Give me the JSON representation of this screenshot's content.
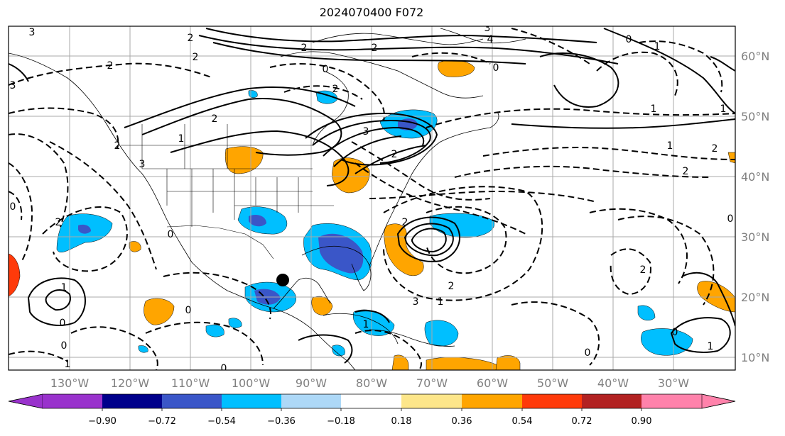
{
  "title": "2024070400 F072",
  "longitude_labels": [
    "130°W",
    "120°W",
    "110°W",
    "100°W",
    "90°W",
    "80°W",
    "70°W",
    "60°W",
    "50°W",
    "40°W",
    "30°W"
  ],
  "latitude_labels": [
    "60°N",
    "50°N",
    "40°N",
    "30°N",
    "20°N",
    "10°N"
  ],
  "colorbar": {
    "ticks": [
      "−0.90",
      "−0.72",
      "−0.54",
      "−0.36",
      "−0.18",
      "0.18",
      "0.36",
      "0.54",
      "0.72",
      "0.90"
    ],
    "colors": [
      "#9932cc",
      "#00008b",
      "#3a56c8",
      "#00bfff",
      "#add8f7",
      "#ffffff",
      "#fde68a",
      "#ffa500",
      "#ff3a0a",
      "#b22222",
      "#ff82ab"
    ]
  },
  "contour_labels": [
    "3",
    "2",
    "2",
    "2",
    "3",
    "4",
    "0",
    "0",
    "1",
    "1",
    "1",
    "2",
    "2",
    "0",
    "2",
    "1",
    "2",
    "3",
    "2",
    "2",
    "1",
    "3",
    "3",
    "2",
    "2",
    "0",
    "1",
    "0",
    "0",
    "0",
    "2",
    "2",
    "1",
    "0",
    "0",
    "2",
    "1",
    "1",
    "0",
    "0",
    "2",
    "3",
    "0",
    "1"
  ],
  "marker": {
    "name": "black-dot"
  }
}
